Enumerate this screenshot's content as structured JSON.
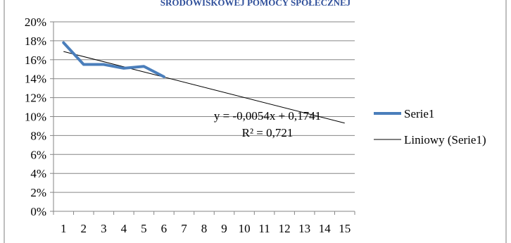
{
  "chart_data": {
    "type": "line",
    "title": "ŚRODOWISKOWEJ POMOCY SPOŁECZNEJ",
    "x": [
      1,
      2,
      3,
      4,
      5,
      6,
      7,
      8,
      9,
      10,
      11,
      12,
      13,
      14,
      15
    ],
    "x_tick_labels": [
      "1",
      "2",
      "3",
      "4",
      "5",
      "6",
      "7",
      "8",
      "9",
      "10",
      "11",
      "12",
      "13",
      "14",
      "15"
    ],
    "y_tick_labels": [
      "0%",
      "2%",
      "4%",
      "6%",
      "8%",
      "10%",
      "12%",
      "14%",
      "16%",
      "18%",
      "20%"
    ],
    "ylim": [
      0,
      0.2
    ],
    "grid": true,
    "legend_position": "right",
    "series": [
      {
        "name": "Serie1",
        "x": [
          1,
          2,
          3,
          4,
          5,
          6
        ],
        "values": [
          0.178,
          0.155,
          0.155,
          0.151,
          0.153,
          0.142
        ],
        "color": "#4a7ebb"
      }
    ],
    "trendline": {
      "name": "Liniowy (Serie1)",
      "slope": -0.0054,
      "intercept": 0.1741,
      "x_range": [
        1,
        15
      ],
      "color": "#000000",
      "equation": "y = -0,0054x + 0,1741",
      "r_squared": "R² = 0,721"
    }
  }
}
